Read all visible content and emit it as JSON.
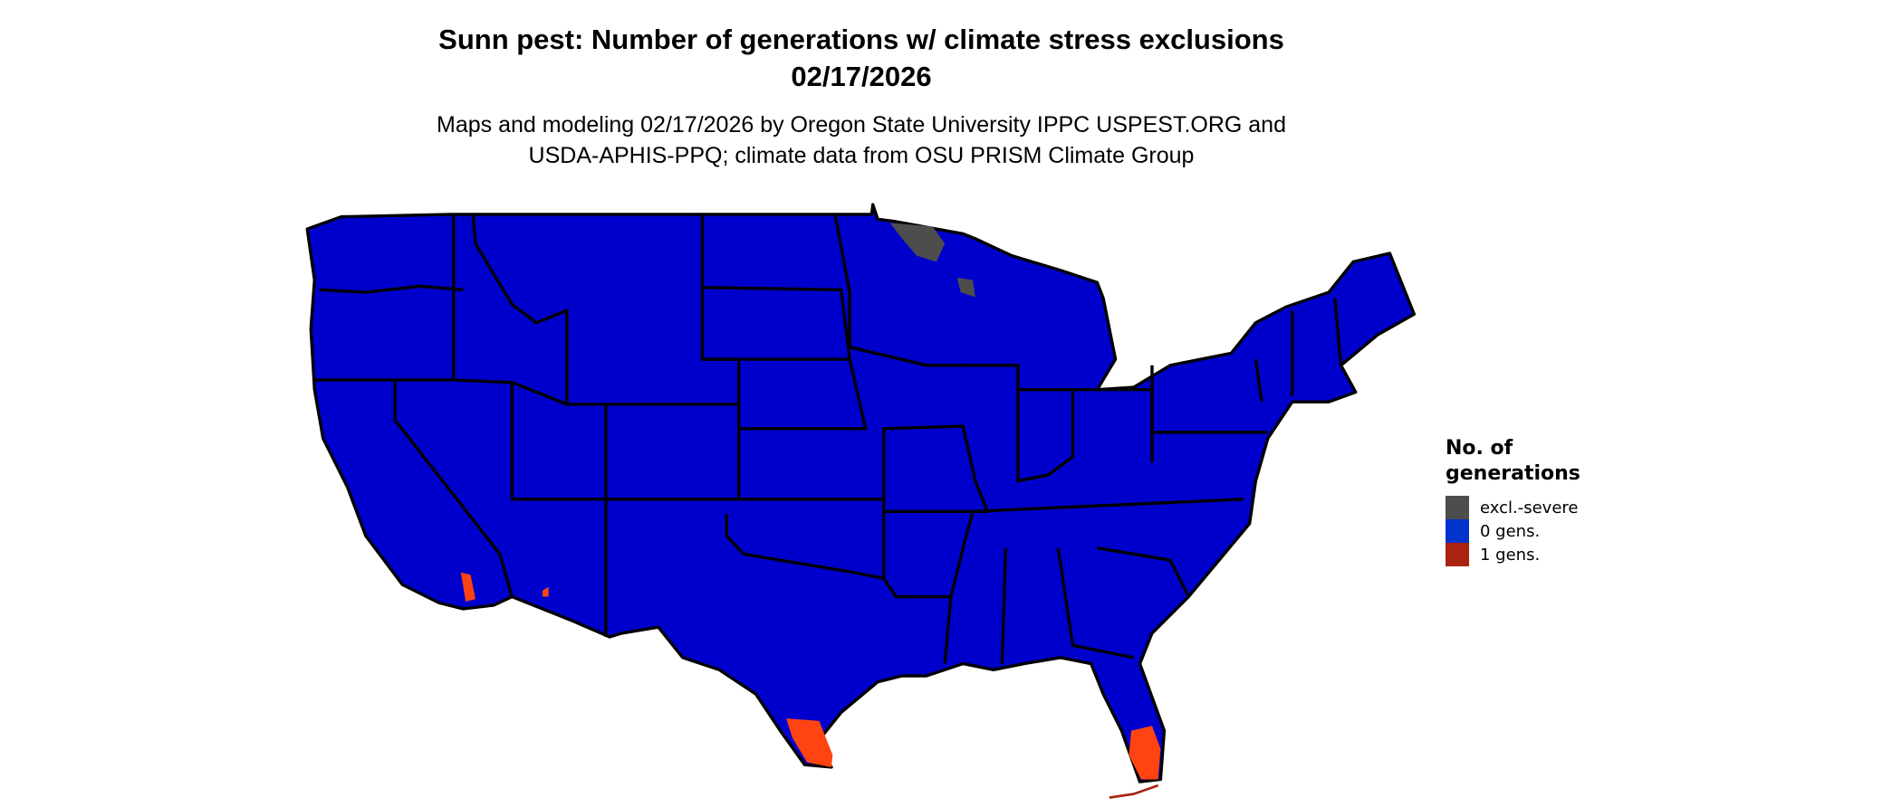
{
  "title": {
    "line1": "Sunn pest: Number of generations w/ climate stress exclusions",
    "line2": "02/17/2026"
  },
  "subtitle": {
    "line1": "Maps and modeling 02/17/2026 by Oregon State University IPPC USPEST.ORG and",
    "line2": "USDA-APHIS-PPQ; climate data from OSU PRISM Climate Group"
  },
  "legend": {
    "title_line1": "No. of",
    "title_line2": "generations",
    "items": [
      {
        "label": "excl.-severe",
        "color": "#4d4d4d"
      },
      {
        "label": "0 gens.",
        "color": "#0033cc"
      },
      {
        "label": "1 gens.",
        "color": "#aa2211"
      }
    ]
  },
  "map": {
    "region": "Contiguous United States",
    "fill_color": "#0000cc",
    "border_color": "#000000",
    "one_gen_area_color": "#ff4411",
    "excluded_area_color": "#4d4d4d"
  }
}
